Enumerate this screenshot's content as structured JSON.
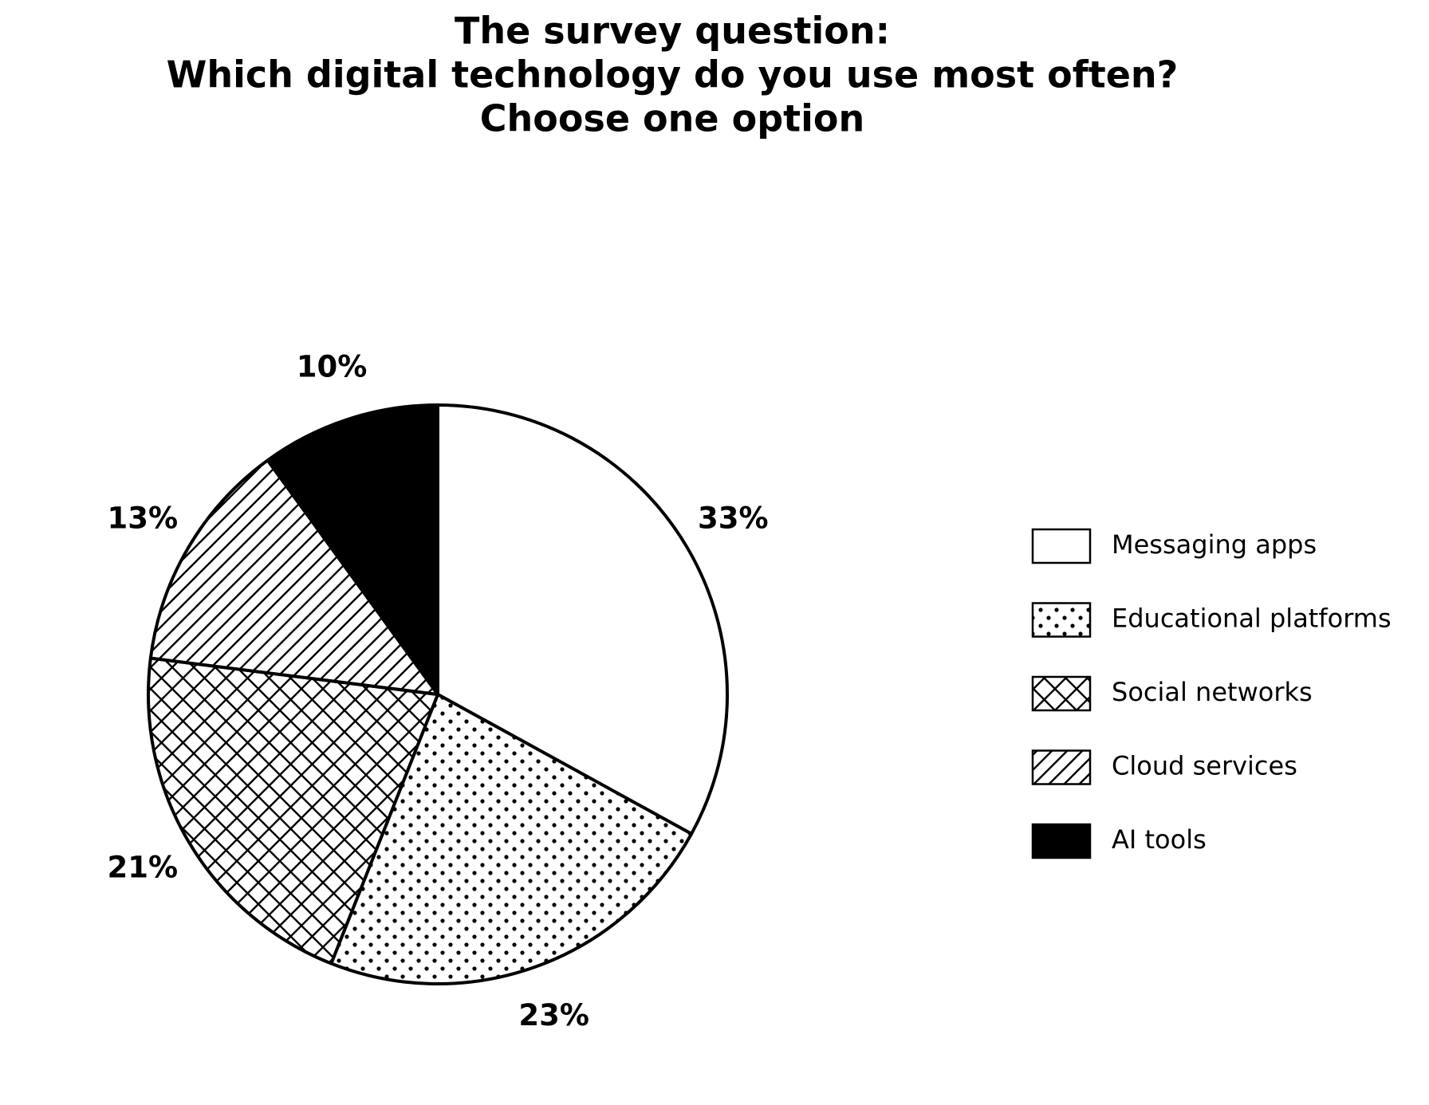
{
  "chart_data": {
    "type": "pie",
    "title": [
      "The survey question:",
      "Which digital technology do you use most often?",
      "Choose one option"
    ],
    "categories": [
      "Messaging apps",
      "Educational platforms",
      "Social networks",
      "Cloud services",
      "AI tools"
    ],
    "values": [
      33,
      23,
      21,
      13,
      10
    ],
    "value_labels": [
      "33%",
      "23%",
      "21%",
      "13%",
      "10%"
    ],
    "colors": [
      "#ffffff",
      "#ffffff",
      "#ffffff",
      "#ffffff",
      "#000000"
    ],
    "hatches": [
      "none",
      "dots",
      "crosshatch",
      "diagonal",
      "none"
    ],
    "start_angle": 90,
    "direction": "clockwise",
    "legend": "right"
  }
}
